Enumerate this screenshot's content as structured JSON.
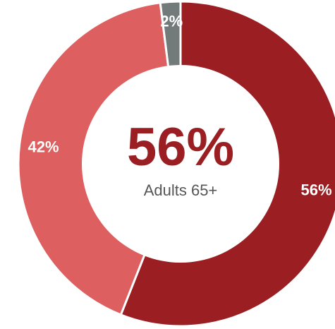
{
  "chart_data": {
    "type": "pie",
    "style": "donut",
    "categories": [
      "",
      "",
      ""
    ],
    "values": [
      56,
      42,
      2
    ],
    "slice_labels": [
      "56%",
      "42%",
      "2%"
    ],
    "colors": [
      "#9b1f22",
      "#de5f5f",
      "#727a7a"
    ],
    "center": {
      "value": "56%",
      "caption": "Adults 65+",
      "value_color": "#9b1f22"
    }
  }
}
